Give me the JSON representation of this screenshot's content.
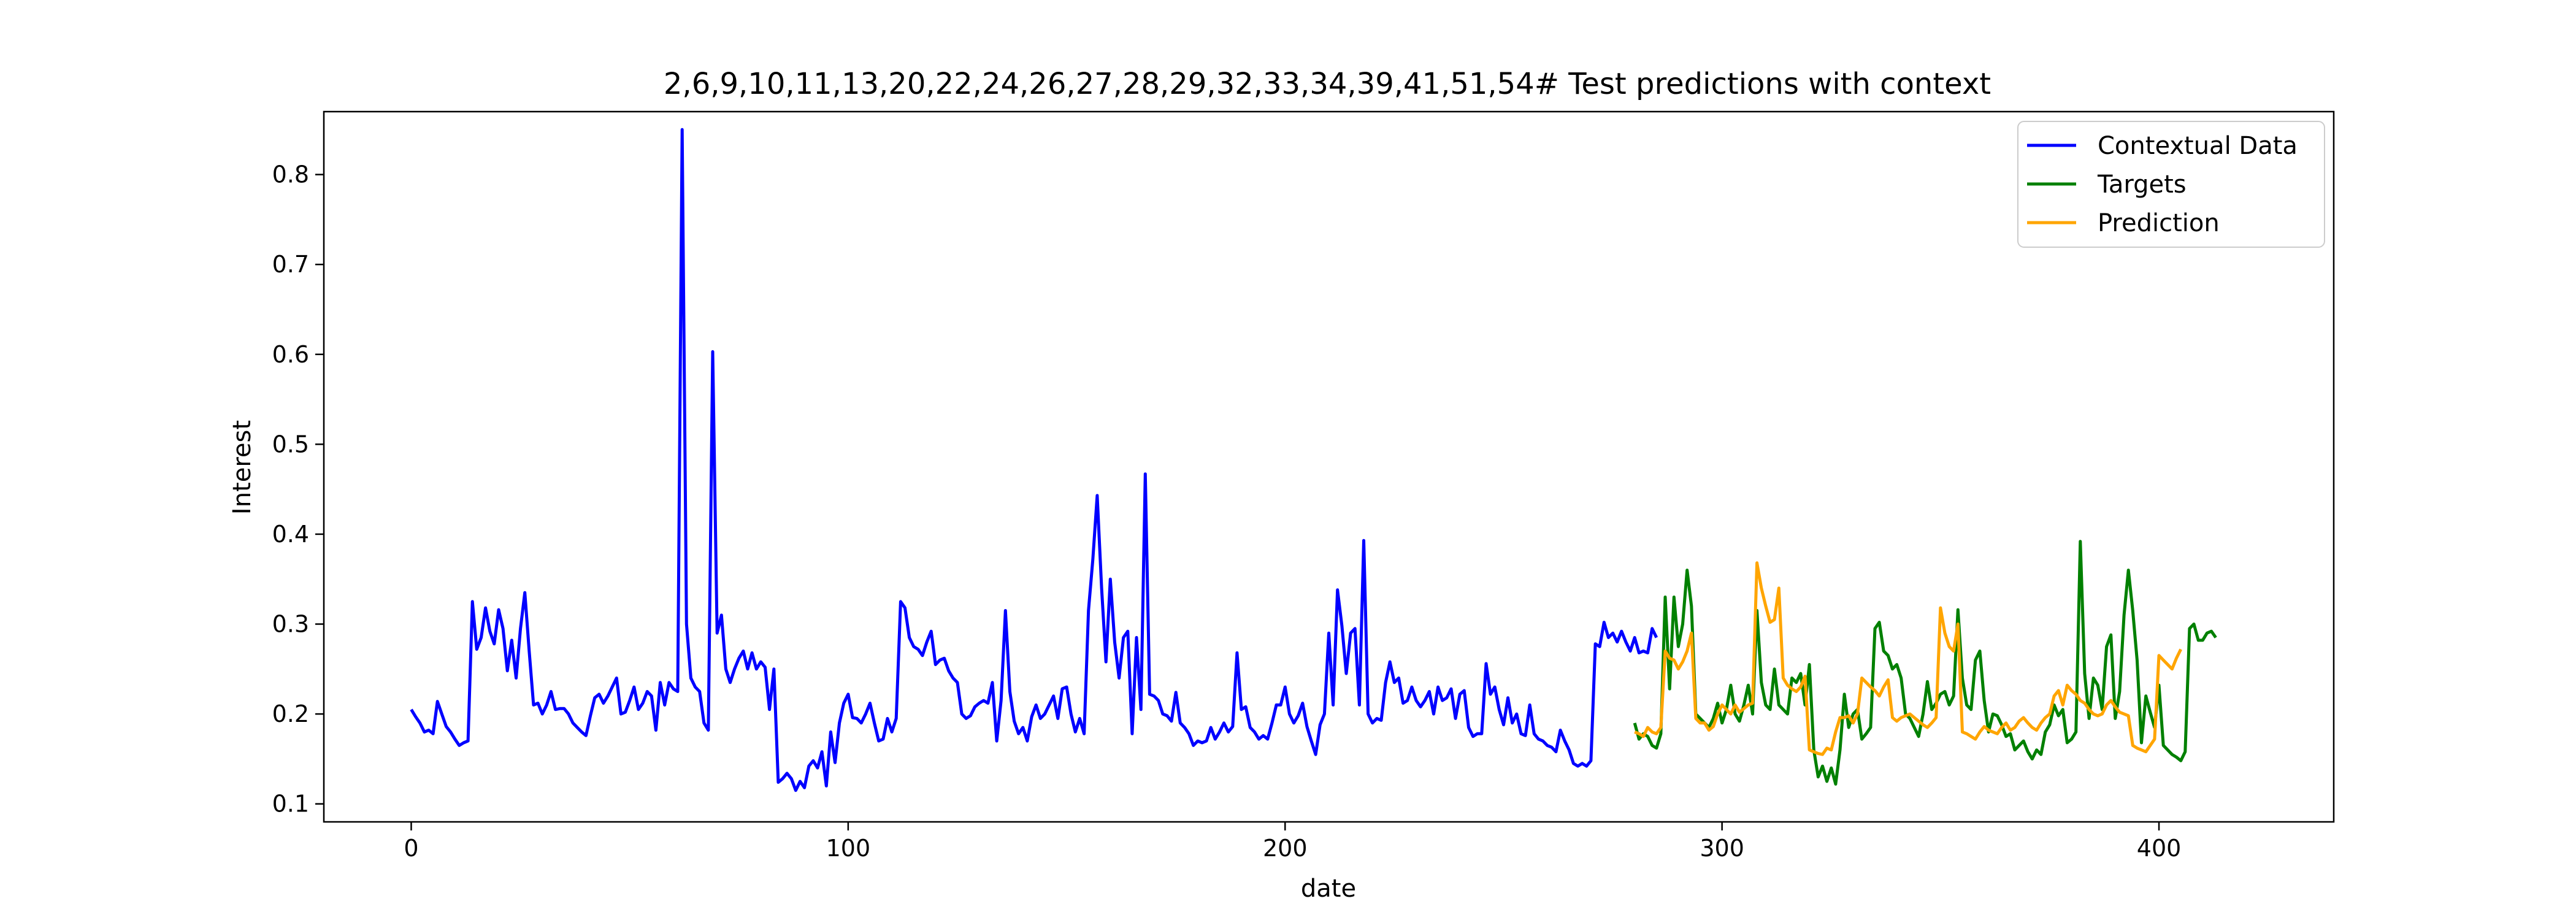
{
  "chart_data": {
    "type": "line",
    "title": "2,6,9,10,11,13,20,22,24,26,27,28,29,32,33,34,39,41,51,54# Test predictions with context",
    "xlabel": "date",
    "ylabel": "Interest",
    "xlim": [
      -20,
      440
    ],
    "ylim": [
      0.08,
      0.87
    ],
    "x_ticks": [
      "0",
      "100",
      "200",
      "300",
      "400"
    ],
    "y_ticks": [
      "0.1",
      "0.2",
      "0.3",
      "0.4",
      "0.5",
      "0.6",
      "0.7",
      "0.8"
    ],
    "grid": false,
    "legend_position": "top-right",
    "series": [
      {
        "name": "Contextual Data",
        "color": "#0000ff",
        "x_start": 0,
        "values": [
          0.205,
          0.197,
          0.19,
          0.18,
          0.182,
          0.178,
          0.214,
          0.2,
          0.186,
          0.18,
          0.172,
          0.165,
          0.168,
          0.17,
          0.325,
          0.272,
          0.285,
          0.318,
          0.292,
          0.278,
          0.316,
          0.295,
          0.248,
          0.282,
          0.24,
          0.295,
          0.335,
          0.27,
          0.21,
          0.212,
          0.2,
          0.21,
          0.225,
          0.205,
          0.206,
          0.206,
          0.2,
          0.19,
          0.185,
          0.18,
          0.176,
          0.198,
          0.218,
          0.222,
          0.212,
          0.22,
          0.23,
          0.24,
          0.2,
          0.202,
          0.215,
          0.23,
          0.205,
          0.212,
          0.225,
          0.22,
          0.182,
          0.235,
          0.21,
          0.235,
          0.228,
          0.225,
          0.85,
          0.3,
          0.24,
          0.23,
          0.225,
          0.19,
          0.182,
          0.603,
          0.29,
          0.31,
          0.25,
          0.235,
          0.25,
          0.262,
          0.27,
          0.25,
          0.268,
          0.25,
          0.258,
          0.252,
          0.205,
          0.25,
          0.124,
          0.128,
          0.134,
          0.128,
          0.115,
          0.125,
          0.118,
          0.142,
          0.148,
          0.14,
          0.158,
          0.12,
          0.18,
          0.146,
          0.19,
          0.212,
          0.222,
          0.196,
          0.195,
          0.19,
          0.2,
          0.212,
          0.19,
          0.17,
          0.172,
          0.195,
          0.18,
          0.195,
          0.325,
          0.318,
          0.285,
          0.275,
          0.272,
          0.265,
          0.28,
          0.292,
          0.255,
          0.26,
          0.262,
          0.248,
          0.24,
          0.235,
          0.2,
          0.195,
          0.198,
          0.208,
          0.212,
          0.215,
          0.212,
          0.235,
          0.17,
          0.215,
          0.315,
          0.225,
          0.192,
          0.178,
          0.185,
          0.17,
          0.197,
          0.21,
          0.195,
          0.2,
          0.21,
          0.22,
          0.195,
          0.228,
          0.23,
          0.2,
          0.18,
          0.195,
          0.178,
          0.315,
          0.372,
          0.443,
          0.34,
          0.258,
          0.35,
          0.28,
          0.24,
          0.285,
          0.292,
          0.178,
          0.285,
          0.205,
          0.467,
          0.222,
          0.22,
          0.215,
          0.2,
          0.198,
          0.192,
          0.224,
          0.19,
          0.185,
          0.178,
          0.165,
          0.17,
          0.168,
          0.17,
          0.185,
          0.172,
          0.18,
          0.19,
          0.18,
          0.186,
          0.268,
          0.205,
          0.208,
          0.185,
          0.18,
          0.172,
          0.176,
          0.172,
          0.19,
          0.21,
          0.21,
          0.23,
          0.2,
          0.19,
          0.198,
          0.212,
          0.186,
          0.17,
          0.155,
          0.188,
          0.2,
          0.29,
          0.21,
          0.338,
          0.298,
          0.245,
          0.29,
          0.295,
          0.21,
          0.393,
          0.2,
          0.19,
          0.195,
          0.193,
          0.235,
          0.258,
          0.235,
          0.24,
          0.212,
          0.215,
          0.23,
          0.215,
          0.208,
          0.215,
          0.225,
          0.2,
          0.23,
          0.215,
          0.218,
          0.228,
          0.195,
          0.222,
          0.226,
          0.185,
          0.175,
          0.178,
          0.178,
          0.256,
          0.222,
          0.23,
          0.205,
          0.188,
          0.218,
          0.19,
          0.2,
          0.178,
          0.176,
          0.21,
          0.178,
          0.172,
          0.17,
          0.165,
          0.163,
          0.158,
          0.182,
          0.17,
          0.16,
          0.145,
          0.142,
          0.145,
          0.142,
          0.148,
          0.278,
          0.275,
          0.302,
          0.285,
          0.29,
          0.28,
          0.292,
          0.28,
          0.27,
          0.285,
          0.268,
          0.27,
          0.268,
          0.295,
          0.285
        ]
      },
      {
        "name": "Targets",
        "color": "#008000",
        "x_start": 280,
        "values": [
          0.19,
          0.172,
          0.178,
          0.175,
          0.165,
          0.162,
          0.178,
          0.33,
          0.228,
          0.33,
          0.275,
          0.3,
          0.36,
          0.32,
          0.2,
          0.195,
          0.19,
          0.185,
          0.195,
          0.212,
          0.19,
          0.205,
          0.232,
          0.2,
          0.192,
          0.21,
          0.232,
          0.2,
          0.315,
          0.235,
          0.21,
          0.205,
          0.25,
          0.21,
          0.205,
          0.2,
          0.24,
          0.235,
          0.245,
          0.21,
          0.255,
          0.16,
          0.13,
          0.142,
          0.125,
          0.14,
          0.122,
          0.16,
          0.222,
          0.185,
          0.2,
          0.205,
          0.172,
          0.178,
          0.185,
          0.295,
          0.302,
          0.27,
          0.265,
          0.25,
          0.255,
          0.24,
          0.2,
          0.195,
          0.185,
          0.175,
          0.2,
          0.236,
          0.205,
          0.212,
          0.222,
          0.225,
          0.21,
          0.22,
          0.316,
          0.24,
          0.21,
          0.205,
          0.26,
          0.27,
          0.215,
          0.18,
          0.2,
          0.198,
          0.188,
          0.175,
          0.178,
          0.16,
          0.165,
          0.17,
          0.158,
          0.15,
          0.16,
          0.155,
          0.18,
          0.188,
          0.21,
          0.198,
          0.205,
          0.168,
          0.172,
          0.18,
          0.392,
          0.245,
          0.195,
          0.24,
          0.232,
          0.205,
          0.275,
          0.288,
          0.195,
          0.225,
          0.31,
          0.36,
          0.315,
          0.26,
          0.168,
          0.22,
          0.202,
          0.185,
          0.232,
          0.165,
          0.16,
          0.155,
          0.152,
          0.148,
          0.158,
          0.295,
          0.3,
          0.282,
          0.282,
          0.29,
          0.292,
          0.285
        ]
      },
      {
        "name": "Prediction",
        "color": "#ffa500",
        "x_start": 280,
        "values": [
          0.18,
          0.178,
          0.175,
          0.185,
          0.18,
          0.178,
          0.185,
          0.27,
          0.262,
          0.26,
          0.25,
          0.258,
          0.27,
          0.29,
          0.195,
          0.19,
          0.19,
          0.182,
          0.186,
          0.2,
          0.21,
          0.205,
          0.2,
          0.21,
          0.202,
          0.206,
          0.21,
          0.212,
          0.368,
          0.34,
          0.32,
          0.302,
          0.305,
          0.34,
          0.24,
          0.232,
          0.228,
          0.225,
          0.23,
          0.242,
          0.16,
          0.158,
          0.156,
          0.155,
          0.162,
          0.16,
          0.18,
          0.196,
          0.196,
          0.198,
          0.19,
          0.2,
          0.24,
          0.235,
          0.23,
          0.226,
          0.22,
          0.23,
          0.238,
          0.196,
          0.192,
          0.196,
          0.198,
          0.2,
          0.196,
          0.192,
          0.188,
          0.185,
          0.19,
          0.196,
          0.318,
          0.29,
          0.275,
          0.27,
          0.3,
          0.18,
          0.178,
          0.175,
          0.172,
          0.18,
          0.186,
          0.182,
          0.18,
          0.178,
          0.185,
          0.19,
          0.182,
          0.185,
          0.192,
          0.196,
          0.19,
          0.185,
          0.182,
          0.19,
          0.196,
          0.2,
          0.22,
          0.226,
          0.21,
          0.232,
          0.226,
          0.222,
          0.215,
          0.212,
          0.205,
          0.2,
          0.198,
          0.2,
          0.21,
          0.215,
          0.208,
          0.202,
          0.2,
          0.198,
          0.165,
          0.162,
          0.16,
          0.158,
          0.165,
          0.172,
          0.265,
          0.26,
          0.255,
          0.25,
          0.262,
          0.272
        ]
      }
    ]
  }
}
